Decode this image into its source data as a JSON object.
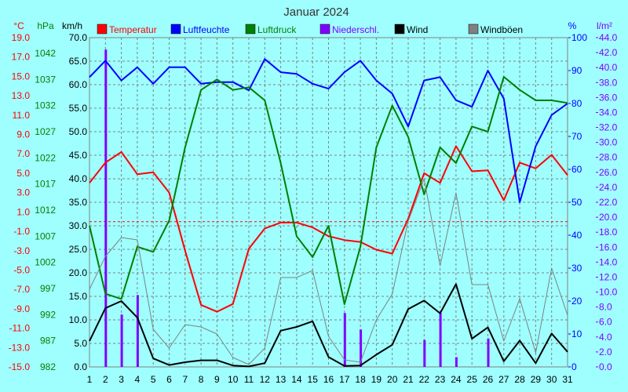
{
  "chart_data": {
    "type": "line",
    "title": "Januar 2024",
    "x": [
      1,
      2,
      3,
      4,
      5,
      6,
      7,
      8,
      9,
      10,
      11,
      12,
      13,
      14,
      15,
      16,
      17,
      18,
      19,
      20,
      21,
      22,
      23,
      24,
      25,
      26,
      27,
      28,
      29,
      30,
      31
    ],
    "axes": {
      "temp": {
        "unit": "°C",
        "min": -15,
        "max": 19,
        "ticks": [
          "-15.0",
          "-13.0",
          "-11.0",
          "-9.0",
          "-7.0",
          "-5.0",
          "-3.0",
          "-1.0",
          "1.0",
          "3.0",
          "5.0",
          "7.0",
          "9.0",
          "11.0",
          "13.0",
          "15.0",
          "17.0",
          "19.0"
        ]
      },
      "pressure": {
        "unit": "hPa",
        "min": 982,
        "max": 1045,
        "ticks": [
          "982",
          "987",
          "992",
          "997",
          "1002",
          "1007",
          "1012",
          "1017",
          "1022",
          "1027",
          "1032",
          "1037",
          "1042"
        ]
      },
      "wind": {
        "unit": "km/h",
        "min": 0,
        "max": 70,
        "ticks": [
          "0.0",
          "5.0",
          "10.0",
          "15.0",
          "20.0",
          "25.0",
          "30.0",
          "35.0",
          "40.0",
          "45.0",
          "50.0",
          "55.0",
          "60.0",
          "65.0",
          "70.0"
        ]
      },
      "humidity": {
        "unit": "%",
        "min": 0,
        "max": 100,
        "ticks": [
          "0",
          "10",
          "20",
          "30",
          "40",
          "50",
          "60",
          "70",
          "80",
          "90",
          "100"
        ]
      },
      "precip": {
        "unit": "l/m²",
        "min": 0,
        "max": 44,
        "ticks": [
          "0.0",
          "2.0",
          "4.0",
          "6.0",
          "8.0",
          "10.0",
          "12.0",
          "14.0",
          "16.0",
          "18.0",
          "20.0",
          "22.0",
          "24.0",
          "26.0",
          "28.0",
          "30.0",
          "32.0",
          "34.0",
          "36.0",
          "38.0",
          "40.0",
          "42.0",
          "44.0"
        ]
      }
    },
    "legend": [
      {
        "name": "Temperatur",
        "color": "#ff0000"
      },
      {
        "name": "Luftfeuchte",
        "color": "#0000ff"
      },
      {
        "name": "Luftdruck",
        "color": "#008000"
      },
      {
        "name": "Niederschl.",
        "color": "#8000ff"
      },
      {
        "name": "Wind",
        "color": "#000000"
      },
      {
        "name": "Windböen",
        "color": "#808080"
      }
    ],
    "series": [
      {
        "name": "Temperatur",
        "axis": "temp",
        "color": "#ff0000",
        "values": [
          4.0,
          6.1,
          7.2,
          4.9,
          5.1,
          3.0,
          -3.0,
          -8.6,
          -9.3,
          -8.5,
          -2.8,
          -0.7,
          -0.1,
          -0.1,
          -0.6,
          -1.5,
          -1.9,
          -2.1,
          -2.9,
          -3.3,
          0.3,
          5.0,
          4.0,
          7.8,
          5.2,
          5.3,
          2.2,
          6.1,
          5.5,
          6.9,
          4.8
        ]
      },
      {
        "name": "Luftfeuchte",
        "axis": "humidity",
        "color": "#0000ff",
        "values": [
          88,
          93,
          87,
          91,
          86,
          91,
          91,
          86,
          86.5,
          86.5,
          84,
          93.5,
          89.5,
          89,
          86,
          84.5,
          89.5,
          93,
          87,
          83,
          73,
          87,
          88,
          81,
          79,
          90,
          81.5,
          50,
          67,
          76.5,
          80
        ]
      },
      {
        "name": "Luftdruck",
        "axis": "pressure",
        "color": "#008000",
        "values": [
          1009,
          996,
          995,
          1005,
          1004,
          1010,
          1024,
          1035,
          1037,
          1035,
          1035.5,
          1033,
          1021,
          1007,
          1003,
          1009,
          994,
          1005,
          1024,
          1032,
          1026,
          1015,
          1024,
          1021,
          1028,
          1027,
          1037.5,
          1035,
          1033,
          1033,
          1032.5
        ]
      },
      {
        "name": "Wind",
        "axis": "wind",
        "color": "#000000",
        "values": [
          5.5,
          12.5,
          14,
          10.5,
          1.8,
          0.4,
          1.0,
          1.4,
          1.4,
          0.3,
          0.1,
          0.8,
          7.7,
          8.5,
          9.7,
          2.1,
          0.2,
          0.3,
          2.6,
          4.7,
          12.3,
          14.1,
          11.4,
          17.6,
          6.0,
          8.4,
          1.2,
          5.6,
          0.8,
          7.1,
          3.2
        ]
      },
      {
        "name": "Windböen",
        "axis": "wind",
        "color": "#808080",
        "values": [
          16.5,
          23.5,
          27.5,
          27,
          8,
          4,
          9,
          8.5,
          7,
          2,
          0.5,
          4,
          19,
          19,
          20.5,
          6.5,
          1.5,
          1,
          10,
          15.5,
          31,
          40,
          21.5,
          37,
          17.5,
          17.5,
          5.5,
          14.5,
          3,
          21,
          11
        ]
      },
      {
        "name": "Niederschl.",
        "axis": "precip",
        "color": "#8000ff",
        "type": "bar",
        "values": [
          0,
          42.4,
          7.0,
          9.6,
          0,
          0,
          0,
          0,
          0,
          0,
          0,
          0,
          0,
          0,
          0,
          0,
          7.2,
          5.0,
          0,
          0,
          0,
          3.6,
          7.2,
          1.3,
          0,
          3.8,
          0,
          0,
          0,
          0,
          0
        ]
      }
    ],
    "reference_line": {
      "axis": "temp",
      "value": 0,
      "color": "#ff0000"
    },
    "grid": true
  }
}
